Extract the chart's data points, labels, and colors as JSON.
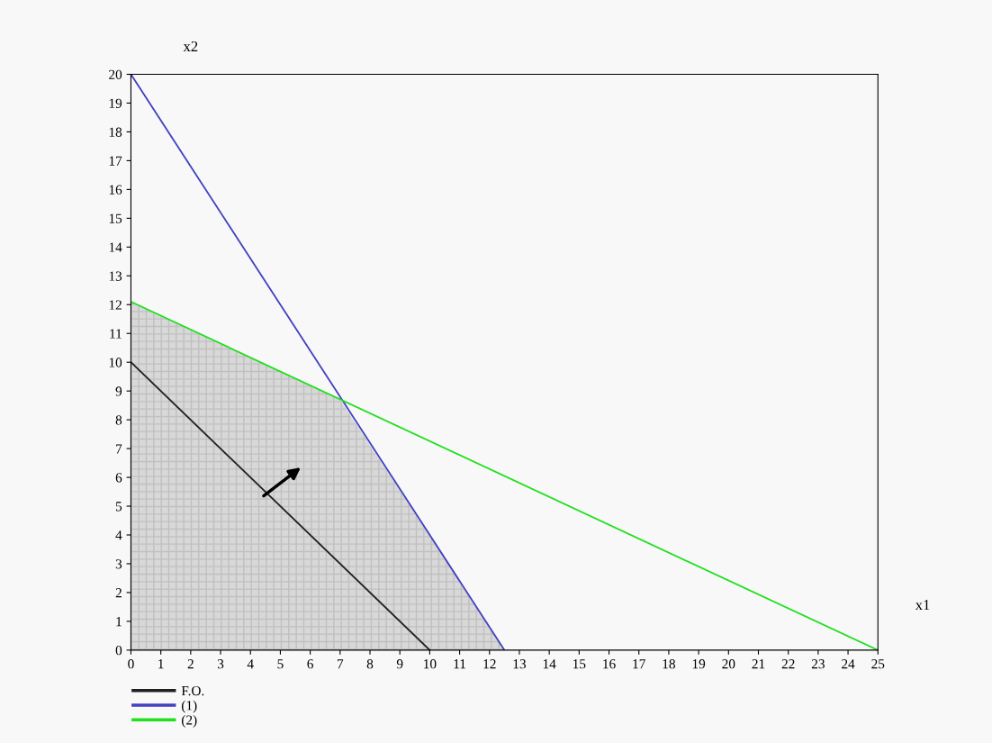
{
  "chart_data": {
    "type": "line",
    "xlabel": "x1",
    "ylabel": "x2",
    "xlim": [
      0,
      25
    ],
    "xticks": [
      0,
      1,
      2,
      3,
      4,
      5,
      6,
      7,
      8,
      9,
      10,
      11,
      12,
      13,
      14,
      15,
      16,
      17,
      18,
      19,
      20,
      21,
      22,
      23,
      24,
      25
    ],
    "ylim": [
      0,
      20
    ],
    "yticks": [
      0,
      1,
      2,
      3,
      4,
      5,
      6,
      7,
      8,
      9,
      10,
      11,
      12,
      13,
      14,
      15,
      16,
      17,
      18,
      19,
      20
    ],
    "grid": false,
    "legend": "bottom left",
    "series": [
      {
        "type": "area",
        "color": "#d8d8d8",
        "x": [
          0,
          7,
          12.5
        ],
        "values": [
          12.1,
          8.7,
          0
        ]
      },
      {
        "name": "F.O.",
        "color": "#202020",
        "x": [
          0,
          10
        ],
        "values": [
          10,
          0
        ]
      },
      {
        "name": "(1)",
        "color": "#4040c0",
        "x": [
          0,
          12.5
        ],
        "values": [
          20,
          0
        ]
      },
      {
        "name": "(2)",
        "color": "#20e020",
        "x": [
          0,
          25
        ],
        "values": [
          12.1,
          0
        ]
      }
    ]
  }
}
